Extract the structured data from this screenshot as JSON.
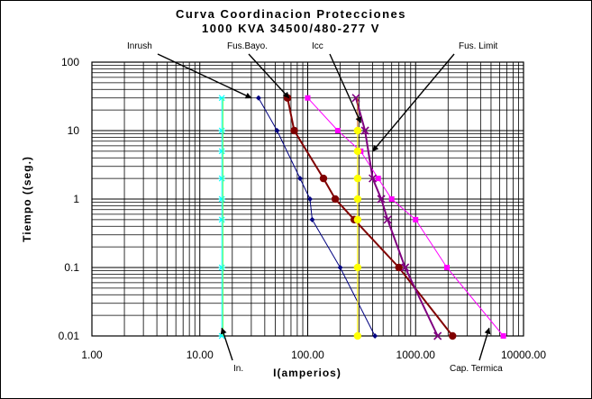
{
  "chart_data": {
    "type": "scatter",
    "title": "Curva Coordinacion Protecciones",
    "subtitle": "1000 KVA 34500/480-277 V",
    "xlabel": "I(amperios)",
    "ylabel": "Tiempo ((seg.)",
    "x_scale": "log",
    "y_scale": "log",
    "xlim": [
      1,
      10000
    ],
    "ylim": [
      0.01,
      100
    ],
    "grid": true,
    "x_tick_labels": [
      "1.00",
      "10.00",
      "100.00",
      "1000.00",
      "10000.00"
    ],
    "y_tick_labels": [
      "0.01",
      "0.1",
      "1",
      "10",
      "100"
    ],
    "series": [
      {
        "color": "#000080",
        "marker": "diamond",
        "points": [
          [
            35,
            30
          ],
          [
            52,
            10
          ],
          [
            85,
            2
          ],
          [
            105,
            1
          ],
          [
            110,
            0.5
          ],
          [
            200,
            0.1
          ],
          [
            420,
            0.01
          ]
        ]
      },
      {
        "color": "#800000",
        "marker": "circle",
        "points": [
          [
            65,
            30
          ],
          [
            75,
            10
          ],
          [
            140,
            2
          ],
          [
            180,
            1
          ],
          [
            270,
            0.5
          ],
          [
            700,
            0.1
          ],
          [
            2200,
            0.01
          ]
        ]
      },
      {
        "color": "#ff00ff",
        "marker": "square",
        "points": [
          [
            100,
            30
          ],
          [
            190,
            10
          ],
          [
            310,
            5
          ],
          [
            450,
            2
          ],
          [
            600,
            1
          ],
          [
            1000,
            0.5
          ],
          [
            1950,
            0.1
          ],
          [
            6500,
            0.01
          ]
        ]
      },
      {
        "color": "#800080",
        "marker": "x",
        "points": [
          [
            280,
            30
          ],
          [
            340,
            10
          ],
          [
            400,
            2
          ],
          [
            480,
            1
          ],
          [
            550,
            0.5
          ],
          [
            800,
            0.1
          ],
          [
            1600,
            0.01
          ]
        ]
      },
      {
        "color": "#c05000",
        "marker": "none",
        "points": [
          [
            290,
            30
          ],
          [
            290,
            0.01
          ]
        ]
      },
      {
        "color": "#ffff00",
        "marker": "circle",
        "points": [
          [
            290,
            10
          ],
          [
            290,
            5
          ],
          [
            290,
            2
          ],
          [
            290,
            1
          ],
          [
            290,
            0.5
          ],
          [
            290,
            0.1
          ],
          [
            290,
            0.01
          ]
        ]
      },
      {
        "color": "#00ffff",
        "marker": "asterisk",
        "points": [
          [
            16,
            30
          ],
          [
            16,
            10
          ],
          [
            16,
            5
          ],
          [
            16,
            2
          ],
          [
            16,
            1
          ],
          [
            16,
            0.5
          ],
          [
            16,
            0.1
          ],
          [
            16,
            0.01
          ]
        ]
      },
      {
        "color": "#66ff66",
        "marker": "none",
        "points": [
          [
            16.4,
            30
          ],
          [
            16.4,
            0.01
          ]
        ]
      }
    ],
    "annotations": [
      {
        "label": "Inrush",
        "tip": [
          30,
          30
        ]
      },
      {
        "label": "Fus.Bayo.",
        "tip": [
          67,
          30
        ]
      },
      {
        "label": "Icc",
        "tip": [
          310,
          13
        ]
      },
      {
        "label": "Fus. Limit",
        "tip": [
          400,
          5
        ]
      },
      {
        "label": "In.",
        "tip": [
          16,
          0.013
        ]
      },
      {
        "label": "Cap. Termica",
        "tip": [
          4800,
          0.013
        ]
      }
    ]
  }
}
